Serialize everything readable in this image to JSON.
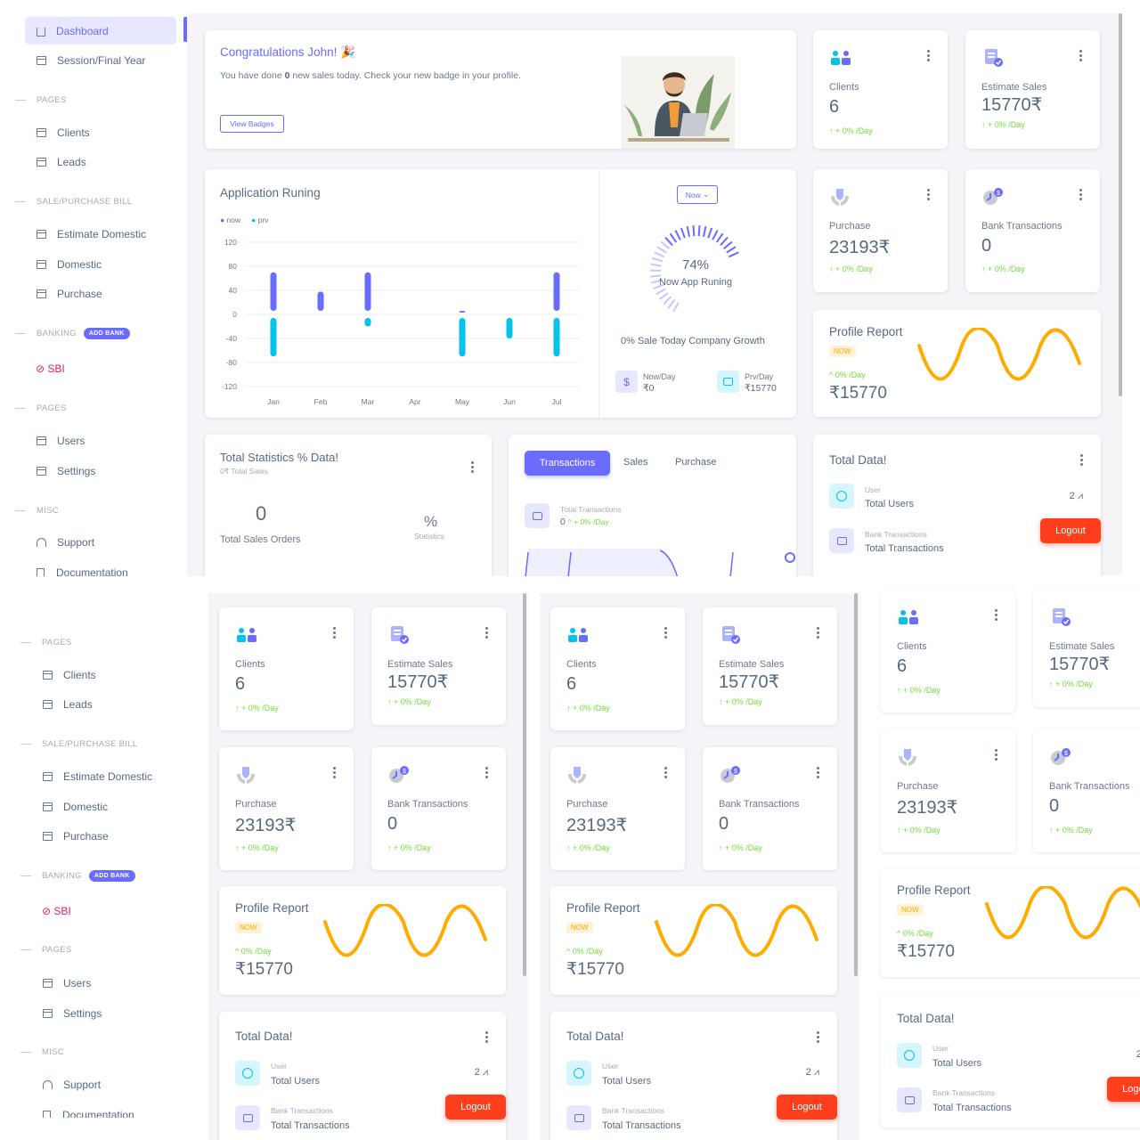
{
  "sidebar": {
    "dashboard": "Dashboard",
    "session": "Session/Final Year",
    "pages1": "PAGES",
    "clients": "Clients",
    "leads": "Leads",
    "bill_header": "SALE/PURCHASE BILL",
    "estimate_domestic": "Estimate Domestic",
    "domestic": "Domestic",
    "purchase": "Purchase",
    "banking": "BANKING",
    "add_bank": "ADD BANK",
    "sbi": "SBI",
    "pages2": "PAGES",
    "users": "Users",
    "settings": "Settings",
    "misc": "MISC",
    "support": "Support",
    "documentation": "Documentation"
  },
  "welcome": {
    "title": "Congratulations John! 🎉",
    "text_prefix": "You have done ",
    "text_count": "0",
    "text_suffix": " new sales today. Check your new badge in your profile.",
    "button": "View Badges"
  },
  "stats": {
    "clients": {
      "label": "Clients",
      "value": "6",
      "delta": "+ 0% /Day"
    },
    "estimate": {
      "label": "Estimate Sales",
      "value": "15770₹",
      "delta": "+ 0% /Day"
    },
    "purchase": {
      "label": "Purchase",
      "value": "23193₹",
      "delta": "+ 0% /Day"
    },
    "bank": {
      "label": "Bank Transactions",
      "value": "0",
      "delta": "+ 0% /Day"
    }
  },
  "profile": {
    "title": "Profile Report",
    "badge": "NOW",
    "delta": "0% /Day",
    "value": "₹15770"
  },
  "total_data": {
    "title": "Total Data!",
    "user_sub": "User",
    "user_main": "Total Users",
    "user_count": "2",
    "bank_sub": "Bank Transactions",
    "bank_main": "Total Transactions",
    "logout": "Logout"
  },
  "app": {
    "title": "Application Runing",
    "legend_now": "now",
    "legend_prv": "prv",
    "dropdown": "Now",
    "percent": "74%",
    "gauge_label": "Now App Runing",
    "growth": "0% Sale Today Company Growth",
    "now_day_label": "Now/Day",
    "now_day_value": "₹0",
    "prv_day_label": "Prv/Day",
    "prv_day_value": "₹15770",
    "currency_symbol": "$"
  },
  "chart_data": {
    "type": "bar",
    "title": "Application Runing",
    "categories": [
      "Jan",
      "Feb",
      "Mar",
      "Apr",
      "May",
      "Jun",
      "Jul"
    ],
    "yticks": [
      "120",
      "80",
      "40",
      "0",
      "-40",
      "-80",
      "-120"
    ],
    "ylim": [
      -120,
      120
    ],
    "series": [
      {
        "name": "now",
        "color": "#696cff",
        "values": [
          70,
          38,
          70,
          0,
          3,
          0,
          70
        ]
      },
      {
        "name": "prv",
        "color": "#03c3ec",
        "values": [
          -70,
          0,
          -20,
          0,
          -70,
          -40,
          -70
        ]
      }
    ],
    "legend": "top-left"
  },
  "total_stats": {
    "title": "Total Statistics % Data!",
    "sub": "0₹ Total Sales",
    "orders_value": "0",
    "orders_label": "Total Sales Orders",
    "pct_symbol": "%",
    "pct_label": "Statistics"
  },
  "tabs": {
    "transactions": "Transactions",
    "sales": "Sales",
    "purchase": "Purchase",
    "total_label": "Total Transactions",
    "total_value": "0",
    "total_delta": "+ 0% /Day"
  },
  "colors": {
    "primary": "#696cff",
    "info": "#03c3ec",
    "success": "#71dd37",
    "warning": "#ffab00",
    "danger": "#ff3e1d"
  }
}
